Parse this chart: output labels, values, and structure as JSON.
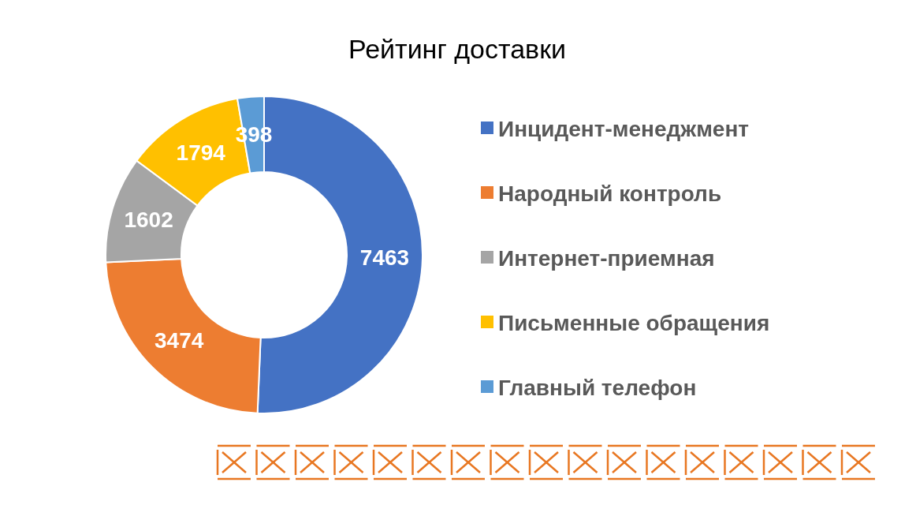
{
  "chart_data": {
    "type": "donut",
    "title": "Рейтинг доставки",
    "categories": [
      "Инцидент-менеджмент",
      "Народный контроль",
      "Интернет-приемная",
      "Письменные обращения",
      "Главный телефон"
    ],
    "values": [
      7463,
      3474,
      1602,
      1794,
      398
    ],
    "colors": [
      "#4472c4",
      "#ed7d31",
      "#a5a5a5",
      "#ffc000",
      "#5b9bd5"
    ],
    "data_labels": true,
    "legend": "right"
  }
}
